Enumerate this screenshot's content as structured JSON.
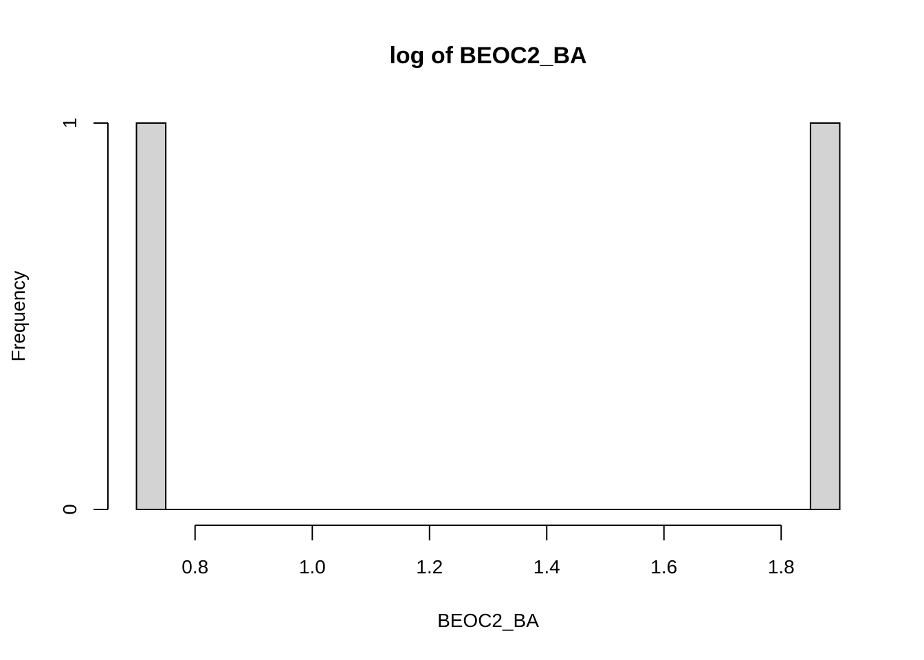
{
  "chart_data": {
    "type": "bar",
    "title": "log of BEOC2_BA",
    "xlabel": "BEOC2_BA",
    "ylabel": "Frequency",
    "xlim": [
      0.7,
      1.9
    ],
    "ylim": [
      0,
      1
    ],
    "x_ticks": [
      "0.8",
      "1.0",
      "1.2",
      "1.4",
      "1.6",
      "1.8"
    ],
    "x_tick_values": [
      0.8,
      1.0,
      1.2,
      1.4,
      1.6,
      1.8
    ],
    "y_ticks": [
      "0",
      "1"
    ],
    "y_tick_values": [
      0,
      1
    ],
    "bins": [
      {
        "start": 0.7,
        "end": 0.75,
        "count": 1
      },
      {
        "start": 0.75,
        "end": 1.85,
        "count": 0
      },
      {
        "start": 1.85,
        "end": 1.9,
        "count": 1
      }
    ],
    "bar_fill": "#d3d3d3",
    "grid": false
  }
}
